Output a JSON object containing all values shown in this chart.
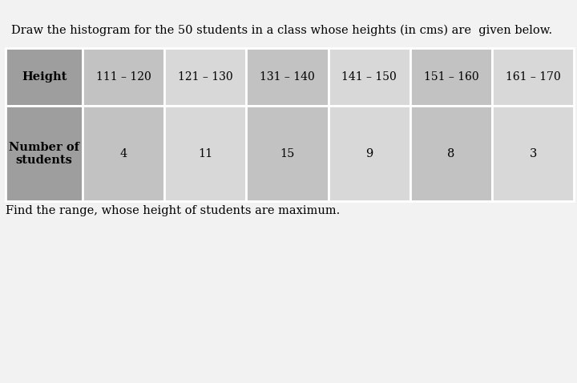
{
  "title": "Draw the histogram for the 50 students in a class whose heights (in cms) are  given below.",
  "footer": "Find the range, whose height of students are maximum.",
  "header_label": "Height",
  "row_label": "Number of\nstudents",
  "columns": [
    "111 – 120",
    "121 – 130",
    "131 – 140",
    "141 – 150",
    "151 – 160",
    "161 – 170"
  ],
  "values": [
    4,
    11,
    15,
    9,
    8,
    3
  ],
  "header_bg": "#9e9e9e",
  "data_bg_dark": "#c2c2c2",
  "data_bg_light": "#d8d8d8",
  "page_bg": "#f2f2f2",
  "edge_color": "#ffffff"
}
